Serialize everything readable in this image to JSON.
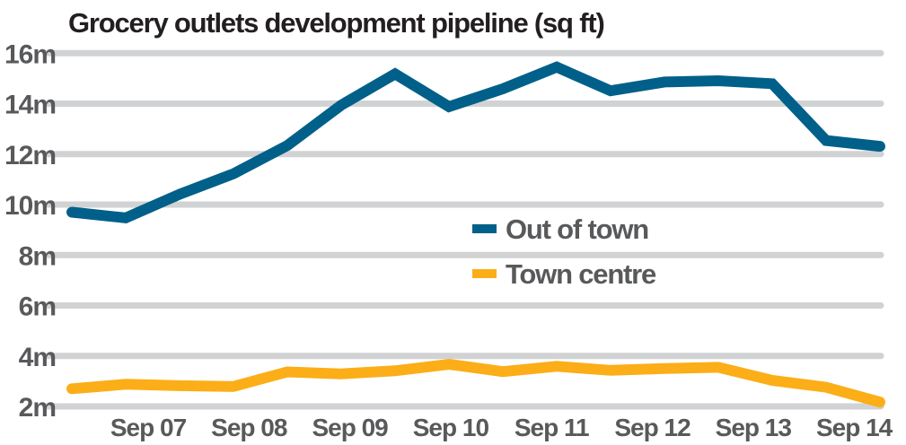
{
  "chart_data": {
    "type": "line",
    "title": "Grocery outlets development pipeline (sq ft)",
    "xlabel": "",
    "ylabel": "",
    "ylim": [
      2,
      16
    ],
    "y_ticks": [
      "2m",
      "4m",
      "6m",
      "8m",
      "10m",
      "12m",
      "14m",
      "16m"
    ],
    "y_tick_values": [
      2,
      4,
      6,
      8,
      10,
      12,
      14,
      16
    ],
    "x_tick_labels": [
      "Sep 07",
      "Sep 08",
      "Sep 09",
      "Sep 10",
      "Sep 11",
      "Sep 12",
      "Sep 13",
      "Sep 14"
    ],
    "grid": true,
    "legend_position": "center-right",
    "series": [
      {
        "name": "Out of town",
        "color": "#006089",
        "values": [
          9.7,
          9.47,
          10.41,
          11.22,
          12.34,
          13.94,
          15.18,
          13.88,
          14.59,
          15.45,
          14.51,
          14.86,
          14.91,
          14.79,
          12.54,
          12.31
        ]
      },
      {
        "name": "Town centre",
        "color": "#fbae17",
        "values": [
          2.7,
          2.88,
          2.82,
          2.79,
          3.37,
          3.29,
          3.41,
          3.67,
          3.38,
          3.59,
          3.43,
          3.5,
          3.55,
          3.03,
          2.76,
          2.17
        ]
      }
    ]
  }
}
